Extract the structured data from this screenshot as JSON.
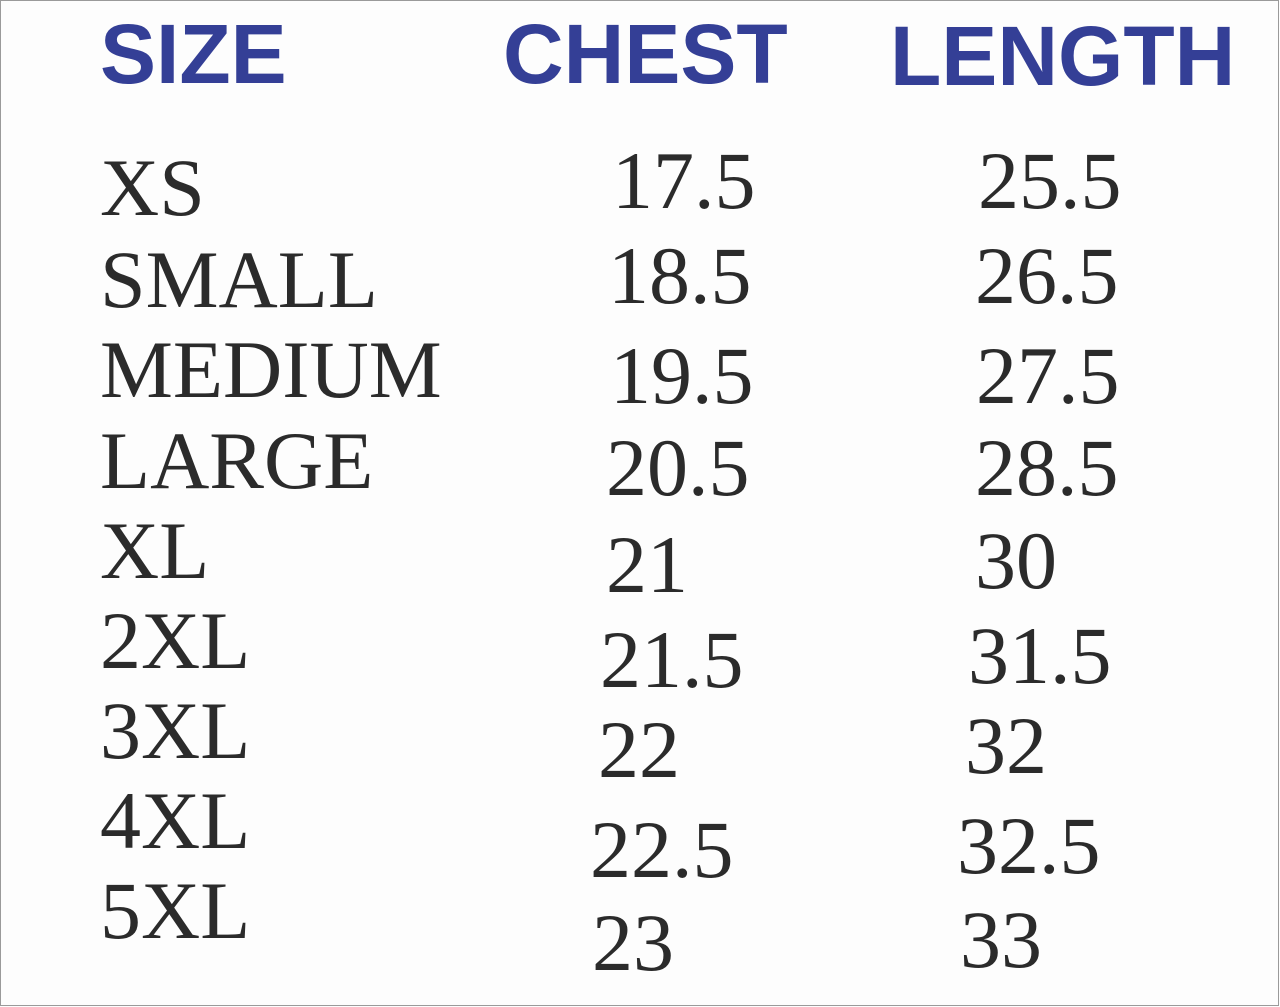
{
  "table": {
    "header": [
      "SIZE",
      "CHEST",
      "LENGTH"
    ],
    "rows": [
      [
        "XS",
        "17.5",
        "25.5"
      ],
      [
        "SMALL",
        "18.5",
        "26.5"
      ],
      [
        "MEDIUM",
        "19.5",
        "27.5"
      ],
      [
        "LARGE",
        "20.5",
        "28.5"
      ],
      [
        "XL",
        "21",
        "30"
      ],
      [
        "2XL",
        "21.5",
        "31.5"
      ],
      [
        "3XL",
        "22",
        "32"
      ],
      [
        "4XL",
        "22.5",
        "32.5"
      ],
      [
        "5XL",
        "23",
        "33"
      ]
    ]
  }
}
